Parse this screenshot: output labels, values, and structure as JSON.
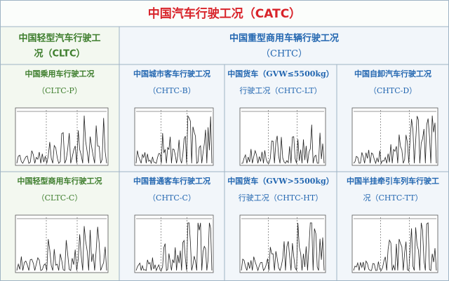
{
  "title": "中国汽车行驶工况（CATC）",
  "left_header": [
    "中国轻型汽车行驶工",
    "况（CLTC）"
  ],
  "right_header": [
    "中国重型商用车辆行驶工况",
    "（CHTC）"
  ],
  "cells": [
    {
      "lines": [
        "中国乘用车行驶工况",
        "（CLTC-P）"
      ]
    },
    {
      "lines": [
        "中国城市客车行驶工况",
        "（CHTC-B）"
      ]
    },
    {
      "lines": [
        "中国货车（GVW≤5500kg）",
        "行驶工况（CHTC-LT）"
      ]
    },
    {
      "lines": [
        "中国自卸汽车行驶工况",
        "（CHTC-D）"
      ]
    },
    {
      "lines": [
        "中国轻型商用车行驶工况",
        "（CLTC-C）"
      ]
    },
    {
      "lines": [
        "中国普通客车行驶工况",
        "（CHTC-C）"
      ]
    },
    {
      "lines": [
        "中国货车（GVW>5500kg）",
        "行驶工况（CHTC-HT）"
      ]
    },
    {
      "lines": [
        "中国半挂牵引车列车行驶工",
        "况（CHTC-TT）"
      ]
    }
  ]
}
